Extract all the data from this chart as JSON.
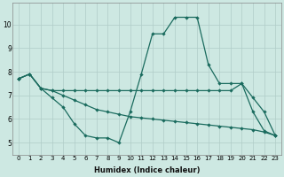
{
  "bg_color": "#cde8e2",
  "line_color": "#1a6b5e",
  "grid_color": "#b0ccc8",
  "xlabel": "Humidex (Indice chaleur)",
  "ylim": [
    4.5,
    10.9
  ],
  "xlim": [
    -0.5,
    23.5
  ],
  "yticks": [
    5,
    6,
    7,
    8,
    9,
    10
  ],
  "xticks": [
    0,
    1,
    2,
    3,
    4,
    5,
    6,
    7,
    8,
    9,
    10,
    11,
    12,
    13,
    14,
    15,
    16,
    17,
    18,
    19,
    20,
    21,
    22,
    23
  ],
  "series": [
    {
      "x": [
        0,
        1,
        2,
        3,
        4,
        5,
        6,
        7,
        8,
        9,
        10,
        11,
        12,
        13,
        14,
        15,
        16,
        17,
        18,
        19,
        20,
        21,
        22,
        23
      ],
      "y": [
        7.7,
        7.9,
        7.3,
        6.9,
        6.5,
        5.8,
        5.3,
        5.2,
        5.2,
        5.0,
        6.3,
        7.9,
        9.6,
        9.6,
        10.3,
        10.3,
        10.3,
        8.3,
        7.5,
        7.5,
        7.5,
        6.3,
        5.5,
        5.3
      ]
    },
    {
      "x": [
        0,
        1,
        2,
        3,
        4,
        5,
        6,
        7,
        8,
        9,
        10,
        11,
        12,
        13,
        14,
        15,
        16,
        17,
        18,
        19,
        20,
        21,
        22,
        23
      ],
      "y": [
        7.7,
        7.9,
        7.3,
        7.2,
        7.2,
        7.2,
        7.2,
        7.2,
        7.2,
        7.2,
        7.2,
        7.2,
        7.2,
        7.2,
        7.2,
        7.2,
        7.2,
        7.2,
        7.2,
        7.2,
        7.5,
        6.9,
        6.3,
        5.3
      ]
    },
    {
      "x": [
        0,
        1,
        2,
        3,
        4,
        5,
        6,
        7,
        8,
        9,
        10,
        11,
        12,
        13,
        14,
        15,
        16,
        17,
        18,
        19,
        20,
        21,
        22,
        23
      ],
      "y": [
        7.7,
        7.9,
        7.3,
        7.2,
        7.0,
        6.8,
        6.6,
        6.4,
        6.3,
        6.2,
        6.1,
        6.05,
        6.0,
        5.95,
        5.9,
        5.85,
        5.8,
        5.75,
        5.7,
        5.65,
        5.6,
        5.55,
        5.45,
        5.3
      ]
    }
  ]
}
